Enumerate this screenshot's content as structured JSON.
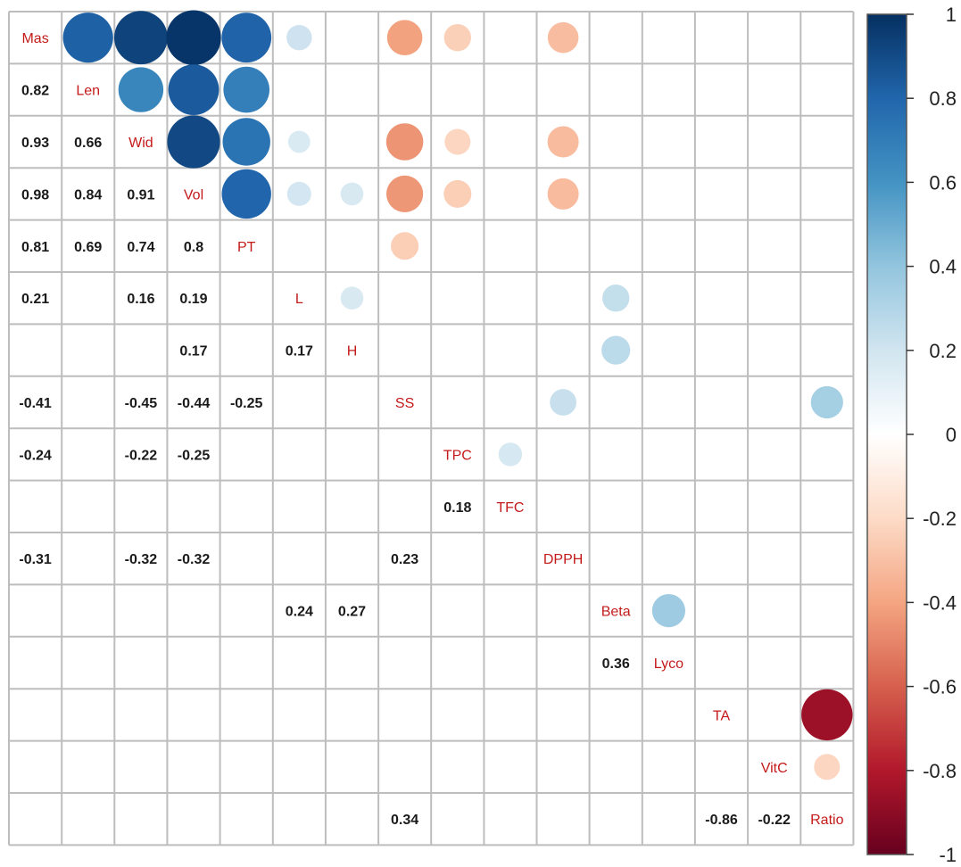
{
  "chart_data": {
    "type": "heatmap",
    "variables": [
      "Mas",
      "Len",
      "Wid",
      "Vol",
      "PT",
      "L",
      "H",
      "SS",
      "TPC",
      "TFC",
      "DPPH",
      "Beta",
      "Lyco",
      "TA",
      "VitC",
      "Ratio"
    ],
    "correlations": [
      {
        "row": "Len",
        "col": "Mas",
        "value": 0.82
      },
      {
        "row": "Wid",
        "col": "Mas",
        "value": 0.93
      },
      {
        "row": "Wid",
        "col": "Len",
        "value": 0.66
      },
      {
        "row": "Vol",
        "col": "Mas",
        "value": 0.98
      },
      {
        "row": "Vol",
        "col": "Len",
        "value": 0.84
      },
      {
        "row": "Vol",
        "col": "Wid",
        "value": 0.91
      },
      {
        "row": "PT",
        "col": "Mas",
        "value": 0.81
      },
      {
        "row": "PT",
        "col": "Len",
        "value": 0.69
      },
      {
        "row": "PT",
        "col": "Wid",
        "value": 0.74
      },
      {
        "row": "PT",
        "col": "Vol",
        "value": 0.8
      },
      {
        "row": "L",
        "col": "Mas",
        "value": 0.21
      },
      {
        "row": "L",
        "col": "Wid",
        "value": 0.16
      },
      {
        "row": "L",
        "col": "Vol",
        "value": 0.19
      },
      {
        "row": "H",
        "col": "Vol",
        "value": 0.17
      },
      {
        "row": "H",
        "col": "L",
        "value": 0.17
      },
      {
        "row": "SS",
        "col": "Mas",
        "value": -0.41
      },
      {
        "row": "SS",
        "col": "Wid",
        "value": -0.45
      },
      {
        "row": "SS",
        "col": "Vol",
        "value": -0.44
      },
      {
        "row": "SS",
        "col": "PT",
        "value": -0.25
      },
      {
        "row": "TPC",
        "col": "Mas",
        "value": -0.24
      },
      {
        "row": "TPC",
        "col": "Wid",
        "value": -0.22
      },
      {
        "row": "TPC",
        "col": "Vol",
        "value": -0.25
      },
      {
        "row": "TFC",
        "col": "TPC",
        "value": 0.18
      },
      {
        "row": "DPPH",
        "col": "Mas",
        "value": -0.31
      },
      {
        "row": "DPPH",
        "col": "Wid",
        "value": -0.32
      },
      {
        "row": "DPPH",
        "col": "Vol",
        "value": -0.32
      },
      {
        "row": "DPPH",
        "col": "SS",
        "value": 0.23
      },
      {
        "row": "Beta",
        "col": "L",
        "value": 0.24
      },
      {
        "row": "Beta",
        "col": "H",
        "value": 0.27
      },
      {
        "row": "Lyco",
        "col": "Beta",
        "value": 0.36
      },
      {
        "row": "Ratio",
        "col": "SS",
        "value": 0.34
      },
      {
        "row": "Ratio",
        "col": "TA",
        "value": -0.86
      },
      {
        "row": "Ratio",
        "col": "VitC",
        "value": -0.22
      }
    ],
    "colorbar": {
      "range": [
        -1,
        1
      ],
      "ticks": [
        "1",
        "0.8",
        "0.6",
        "0.4",
        "0.2",
        "0",
        "-0.2",
        "-0.4",
        "-0.6",
        "-0.8",
        "-1"
      ],
      "colors": {
        "neg_end": "#67001f",
        "mid": "#ffffff",
        "pos_end": "#053061"
      }
    },
    "grid": true,
    "legend_position": "right"
  }
}
